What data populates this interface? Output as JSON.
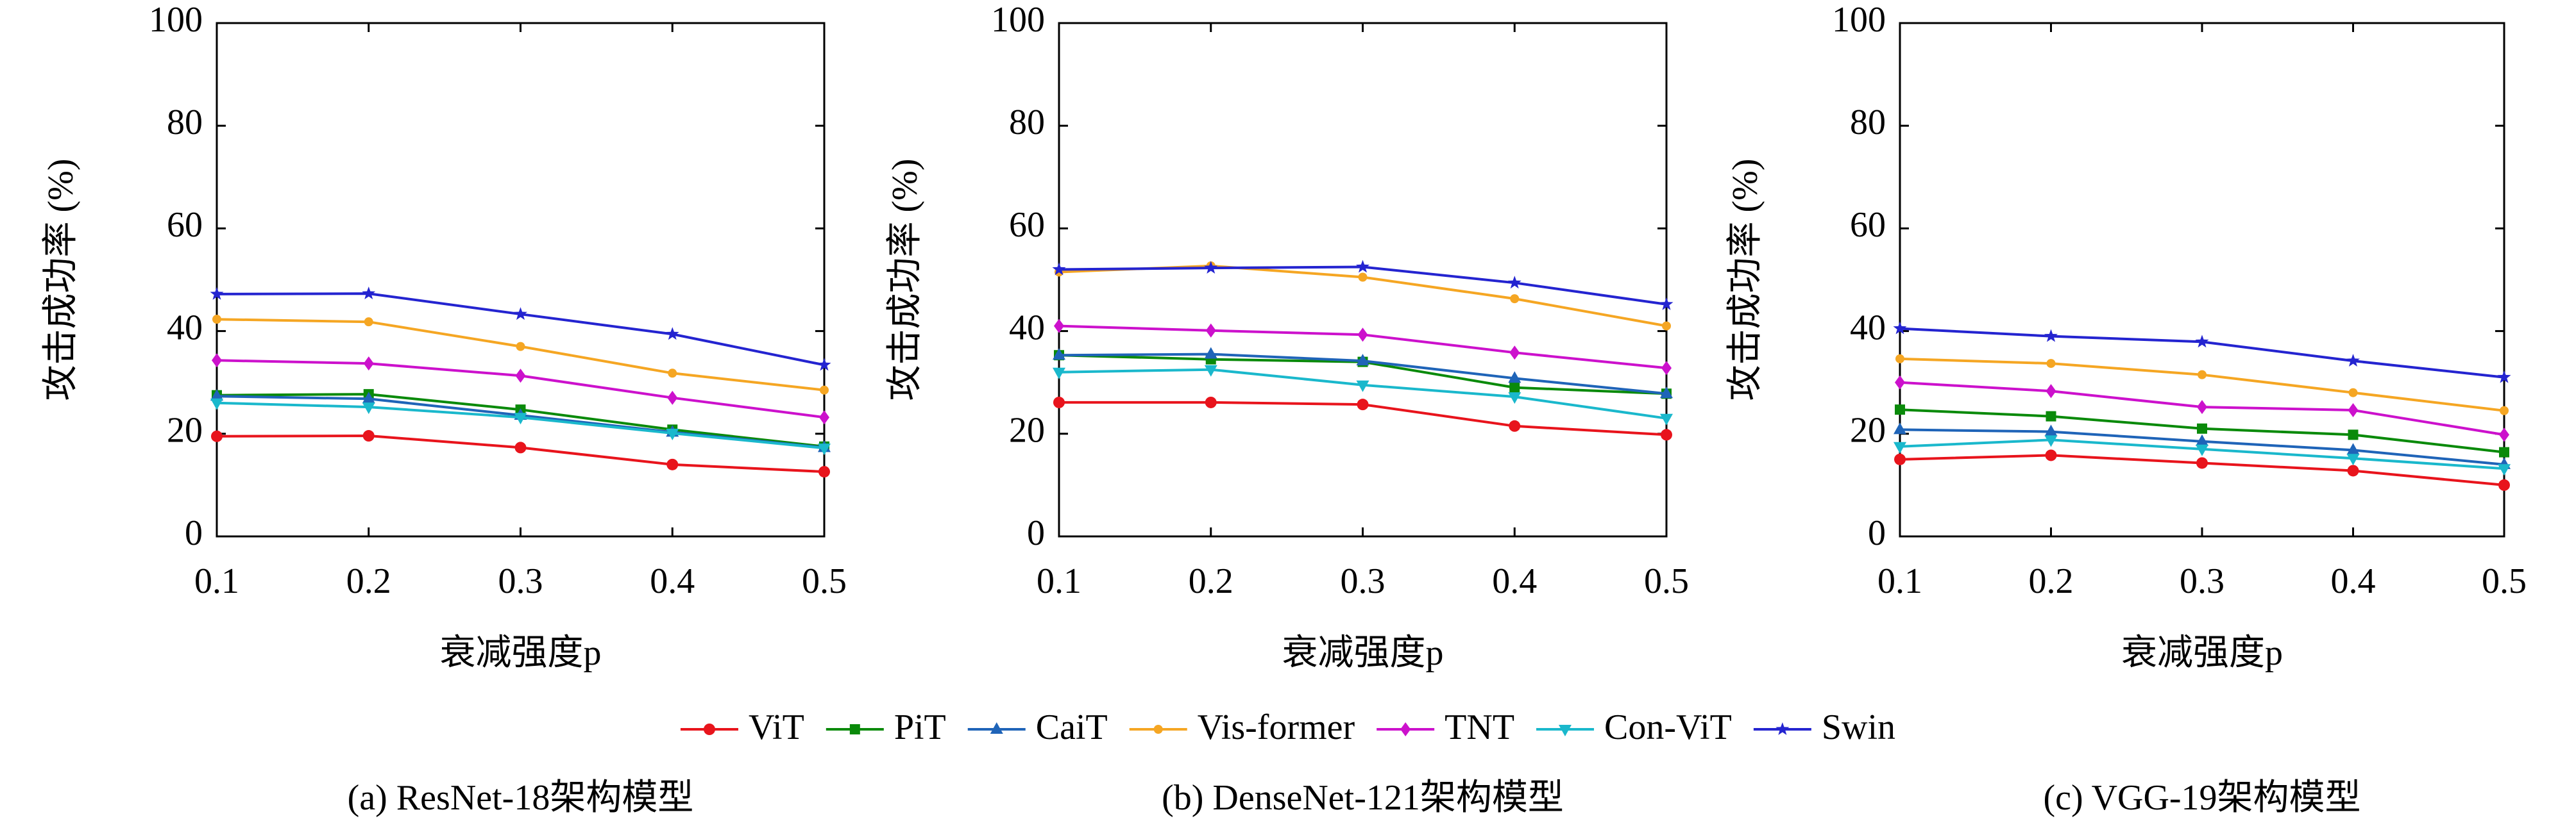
{
  "chart_data": [
    {
      "type": "line",
      "title": "(a) ResNet-18架构模型",
      "xlabel": "衰减强度p",
      "ylabel": "攻击成功率 (%)",
      "x": [
        0.1,
        0.2,
        0.3,
        0.4,
        0.5
      ],
      "xlim": [
        0.1,
        0.5
      ],
      "xticks": [
        0.1,
        0.2,
        0.3,
        0.4,
        0.5
      ],
      "ylim": [
        0,
        100
      ],
      "yticks": [
        0,
        20,
        40,
        60,
        80,
        100
      ],
      "series": [
        {
          "name": "ViT",
          "color": "#e8141c",
          "marker": "circle",
          "values": [
            19.5,
            19.6,
            17.3,
            14,
            12.6
          ]
        },
        {
          "name": "PiT",
          "color": "#0a8a0a",
          "marker": "square",
          "values": [
            27.5,
            27.7,
            24.7,
            20.8,
            17.5
          ]
        },
        {
          "name": "CaiT",
          "color": "#1f64b8",
          "marker": "triangle",
          "values": [
            27.3,
            26.8,
            23.6,
            20.3,
            17.3
          ]
        },
        {
          "name": "Vis-former",
          "color": "#f5a623",
          "marker": "circle-small",
          "values": [
            42.3,
            41.8,
            37,
            31.8,
            28.5
          ]
        },
        {
          "name": "TNT",
          "color": "#cc11cc",
          "marker": "diamond",
          "values": [
            34.3,
            33.7,
            31.3,
            27,
            23.2
          ]
        },
        {
          "name": "Con-ViT",
          "color": "#1ab8cc",
          "marker": "triangle-down",
          "values": [
            26,
            25.2,
            23.2,
            20.1,
            17.2
          ]
        },
        {
          "name": "Swin",
          "color": "#2424d0",
          "marker": "star",
          "values": [
            47.2,
            47.3,
            43.3,
            39.4,
            33.4
          ]
        }
      ]
    },
    {
      "type": "line",
      "title": "(b) DenseNet-121架构模型",
      "xlabel": "衰减强度p",
      "ylabel": "攻击成功率 (%)",
      "x": [
        0.1,
        0.2,
        0.3,
        0.4,
        0.5
      ],
      "xlim": [
        0.1,
        0.5
      ],
      "xticks": [
        0.1,
        0.2,
        0.3,
        0.4,
        0.5
      ],
      "ylim": [
        0,
        100
      ],
      "yticks": [
        0,
        20,
        40,
        60,
        80,
        100
      ],
      "series": [
        {
          "name": "ViT",
          "color": "#e8141c",
          "marker": "circle",
          "values": [
            26.1,
            26.1,
            25.7,
            21.5,
            19.8
          ]
        },
        {
          "name": "PiT",
          "color": "#0a8a0a",
          "marker": "square",
          "values": [
            35.3,
            34.5,
            34,
            29,
            27.8
          ]
        },
        {
          "name": "CaiT",
          "color": "#1f64b8",
          "marker": "triangle",
          "values": [
            35.3,
            35.5,
            34.2,
            30.8,
            27.8
          ]
        },
        {
          "name": "Vis-former",
          "color": "#f5a623",
          "marker": "circle-small",
          "values": [
            51.5,
            52.7,
            50.5,
            46.3,
            41
          ]
        },
        {
          "name": "TNT",
          "color": "#cc11cc",
          "marker": "diamond",
          "values": [
            41,
            40.1,
            39.3,
            35.8,
            32.8
          ]
        },
        {
          "name": "Con-ViT",
          "color": "#1ab8cc",
          "marker": "triangle-down",
          "values": [
            32,
            32.5,
            29.5,
            27.2,
            23
          ]
        },
        {
          "name": "Swin",
          "color": "#2424d0",
          "marker": "star",
          "values": [
            52,
            52.3,
            52.5,
            49.4,
            45.2
          ]
        }
      ]
    },
    {
      "type": "line",
      "title": "(c) VGG-19架构模型",
      "xlabel": "衰减强度p",
      "ylabel": "攻击成功率 (%)",
      "x": [
        0.1,
        0.2,
        0.3,
        0.4,
        0.5
      ],
      "xlim": [
        0.1,
        0.5
      ],
      "xticks": [
        0.1,
        0.2,
        0.3,
        0.4,
        0.5
      ],
      "ylim": [
        0,
        100
      ],
      "yticks": [
        0,
        20,
        40,
        60,
        80,
        100
      ],
      "series": [
        {
          "name": "ViT",
          "color": "#e8141c",
          "marker": "circle",
          "values": [
            15,
            15.8,
            14.3,
            12.8,
            10
          ]
        },
        {
          "name": "PiT",
          "color": "#0a8a0a",
          "marker": "square",
          "values": [
            24.7,
            23.4,
            21,
            19.8,
            16.4
          ]
        },
        {
          "name": "CaiT",
          "color": "#1f64b8",
          "marker": "triangle",
          "values": [
            20.8,
            20.4,
            18.5,
            16.8,
            14
          ]
        },
        {
          "name": "Vis-former",
          "color": "#f5a623",
          "marker": "circle-small",
          "values": [
            34.6,
            33.7,
            31.5,
            28,
            24.5
          ]
        },
        {
          "name": "TNT",
          "color": "#cc11cc",
          "marker": "diamond",
          "values": [
            30,
            28.3,
            25.2,
            24.6,
            19.8
          ]
        },
        {
          "name": "Con-ViT",
          "color": "#1ab8cc",
          "marker": "triangle-down",
          "values": [
            17.5,
            18.8,
            17,
            15.2,
            13.2
          ]
        },
        {
          "name": "Swin",
          "color": "#2424d0",
          "marker": "star",
          "values": [
            40.5,
            39,
            37.9,
            34.2,
            31
          ]
        }
      ]
    }
  ]
}
